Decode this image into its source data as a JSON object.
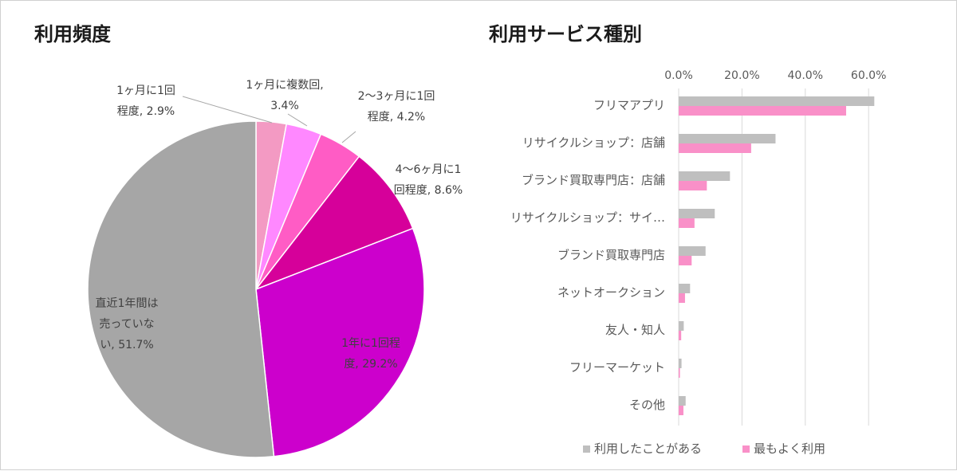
{
  "chart_data": [
    {
      "type": "pie",
      "title": "利用頻度",
      "start_angle_deg": 0,
      "direction": "clockwise",
      "slices": [
        {
          "label_lines": [
            "1ヶ月に1回",
            "程度, 2.9%"
          ],
          "value": 2.9,
          "color": "#F39AC3"
        },
        {
          "label_lines": [
            "1ヶ月に複数回,",
            "3.4%"
          ],
          "value": 3.4,
          "color": "#FF88FF"
        },
        {
          "label_lines": [
            "2〜3ヶ月に1回",
            "程度, 4.2%"
          ],
          "value": 4.2,
          "color": "#FF5CC5"
        },
        {
          "label_lines": [
            "4〜6ヶ月に1",
            "回程度, 8.6%"
          ],
          "value": 8.6,
          "color": "#D6009A"
        },
        {
          "label_lines": [
            "1年に1回程",
            "度, 29.2%"
          ],
          "value": 29.2,
          "color": "#CC00CC"
        },
        {
          "label_lines": [
            "直近1年間は",
            "売っていな",
            "い, 51.7%"
          ],
          "value": 51.7,
          "color": "#A6A6A6"
        }
      ]
    },
    {
      "type": "bar",
      "orientation": "horizontal",
      "title": "利用サービス種別",
      "categories": [
        "フリマアプリ",
        "リサイクルショップ：店舗",
        "ブランド買取専門店：店舗",
        "リサイクルショップ：サイ…",
        "ブランド買取専門店",
        "ネットオークション",
        "友人・知人",
        "フリーマーケット",
        "その他"
      ],
      "series": [
        {
          "name": "利用したことがある",
          "color": "#BFBFBF",
          "values": [
            61.8,
            30.6,
            16.2,
            11.4,
            8.5,
            3.6,
            1.6,
            0.9,
            2.2
          ]
        },
        {
          "name": "最もよく利用",
          "color": "#F990C8",
          "values": [
            52.9,
            22.9,
            8.9,
            5.0,
            4.1,
            2.0,
            0.8,
            0.4,
            1.5
          ]
        }
      ],
      "xlim": [
        0,
        65
      ],
      "ticks": [
        "0.0%",
        "20.0%",
        "40.0%",
        "60.0%"
      ],
      "tick_values": [
        0,
        20,
        40,
        60
      ],
      "axis_position": "top",
      "grid": true,
      "legend_position": "bottom"
    }
  ]
}
